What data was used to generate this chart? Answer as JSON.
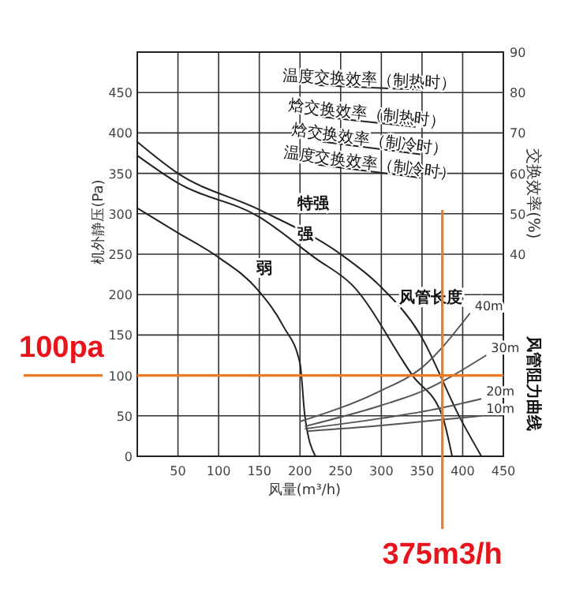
{
  "chart_data": {
    "type": "line",
    "xlabel": "风量(m³/h)",
    "ylabel": "机外静压(Pa)",
    "y2label": "交换效率(%)",
    "xlim": [
      0,
      450
    ],
    "xticks": [
      50,
      100,
      150,
      200,
      250,
      300,
      350,
      400,
      450
    ],
    "ylim": [
      0,
      500
    ],
    "yticks": [
      0,
      50,
      100,
      150,
      200,
      250,
      300,
      350,
      400,
      450
    ],
    "y2lim": [
      -10,
      90
    ],
    "y2ticks": [
      40,
      50,
      60,
      70,
      80,
      90
    ],
    "grid": true,
    "marker": "none",
    "line_style": "solid",
    "series": [
      {
        "name": "特强",
        "color": "#222222",
        "x": [
          0,
          50,
          150,
          250,
          297,
          348,
          397,
          423
        ],
        "values": [
          389,
          350,
          305,
          250,
          212,
          150,
          47,
          0
        ]
      },
      {
        "name": "强",
        "color": "#222222",
        "x": [
          0,
          50,
          150,
          219,
          264,
          339,
          375,
          387
        ],
        "values": [
          372,
          338,
          296,
          245,
          212,
          99,
          50,
          0
        ]
      },
      {
        "name": "弱",
        "color": "#222222",
        "x": [
          0,
          49,
          100,
          148,
          180,
          200,
          206,
          219
        ],
        "values": [
          307,
          277,
          246,
          206,
          160,
          115,
          50,
          0
        ]
      },
      {
        "name": "温度交换效率（制热时）",
        "color": "#222222",
        "axis": "y2",
        "x": [
          222,
          348
        ],
        "values": [
          81.8,
          80.7
        ]
      },
      {
        "name": "焓交换效率（制热时）",
        "color": "#222222",
        "axis": "y2",
        "x": [
          222,
          342
        ],
        "values": [
          74.1,
          71.5
        ]
      },
      {
        "name": "焓交换效率（制冷时）",
        "color": "#222222",
        "axis": "y2",
        "x": [
          222,
          348
        ],
        "values": [
          68.0,
          64.7
        ]
      },
      {
        "name": "温度交换效率（制冷时）",
        "color": "#222222",
        "axis": "y2",
        "x": [
          222,
          348
        ],
        "values": [
          62.1,
          58.9
        ]
      },
      {
        "name": "40m",
        "color": "#555555",
        "x": [
          200,
          297,
          349,
          409
        ],
        "values": [
          43,
          80,
          109,
          177
        ]
      },
      {
        "name": "30m",
        "color": "#555555",
        "x": [
          206,
          300,
          349,
          429
        ],
        "values": [
          37,
          63,
          80,
          125
        ]
      },
      {
        "name": "20m",
        "color": "#555555",
        "x": [
          206,
          300,
          360,
          423
        ],
        "values": [
          34,
          47,
          57,
          71
        ]
      },
      {
        "name": "10m",
        "color": "#555555",
        "x": [
          209,
          300,
          360,
          423
        ],
        "values": [
          31,
          38,
          44,
          50
        ]
      }
    ],
    "ref_lines": [
      {
        "axis": "y",
        "value": 100,
        "label": "100pa",
        "color": "#f07a22"
      },
      {
        "axis": "x",
        "value": 375,
        "label": "375m3/h",
        "color": "#f07a22"
      }
    ],
    "annotations": [
      "风管长度",
      "风管阻力曲线"
    ]
  }
}
